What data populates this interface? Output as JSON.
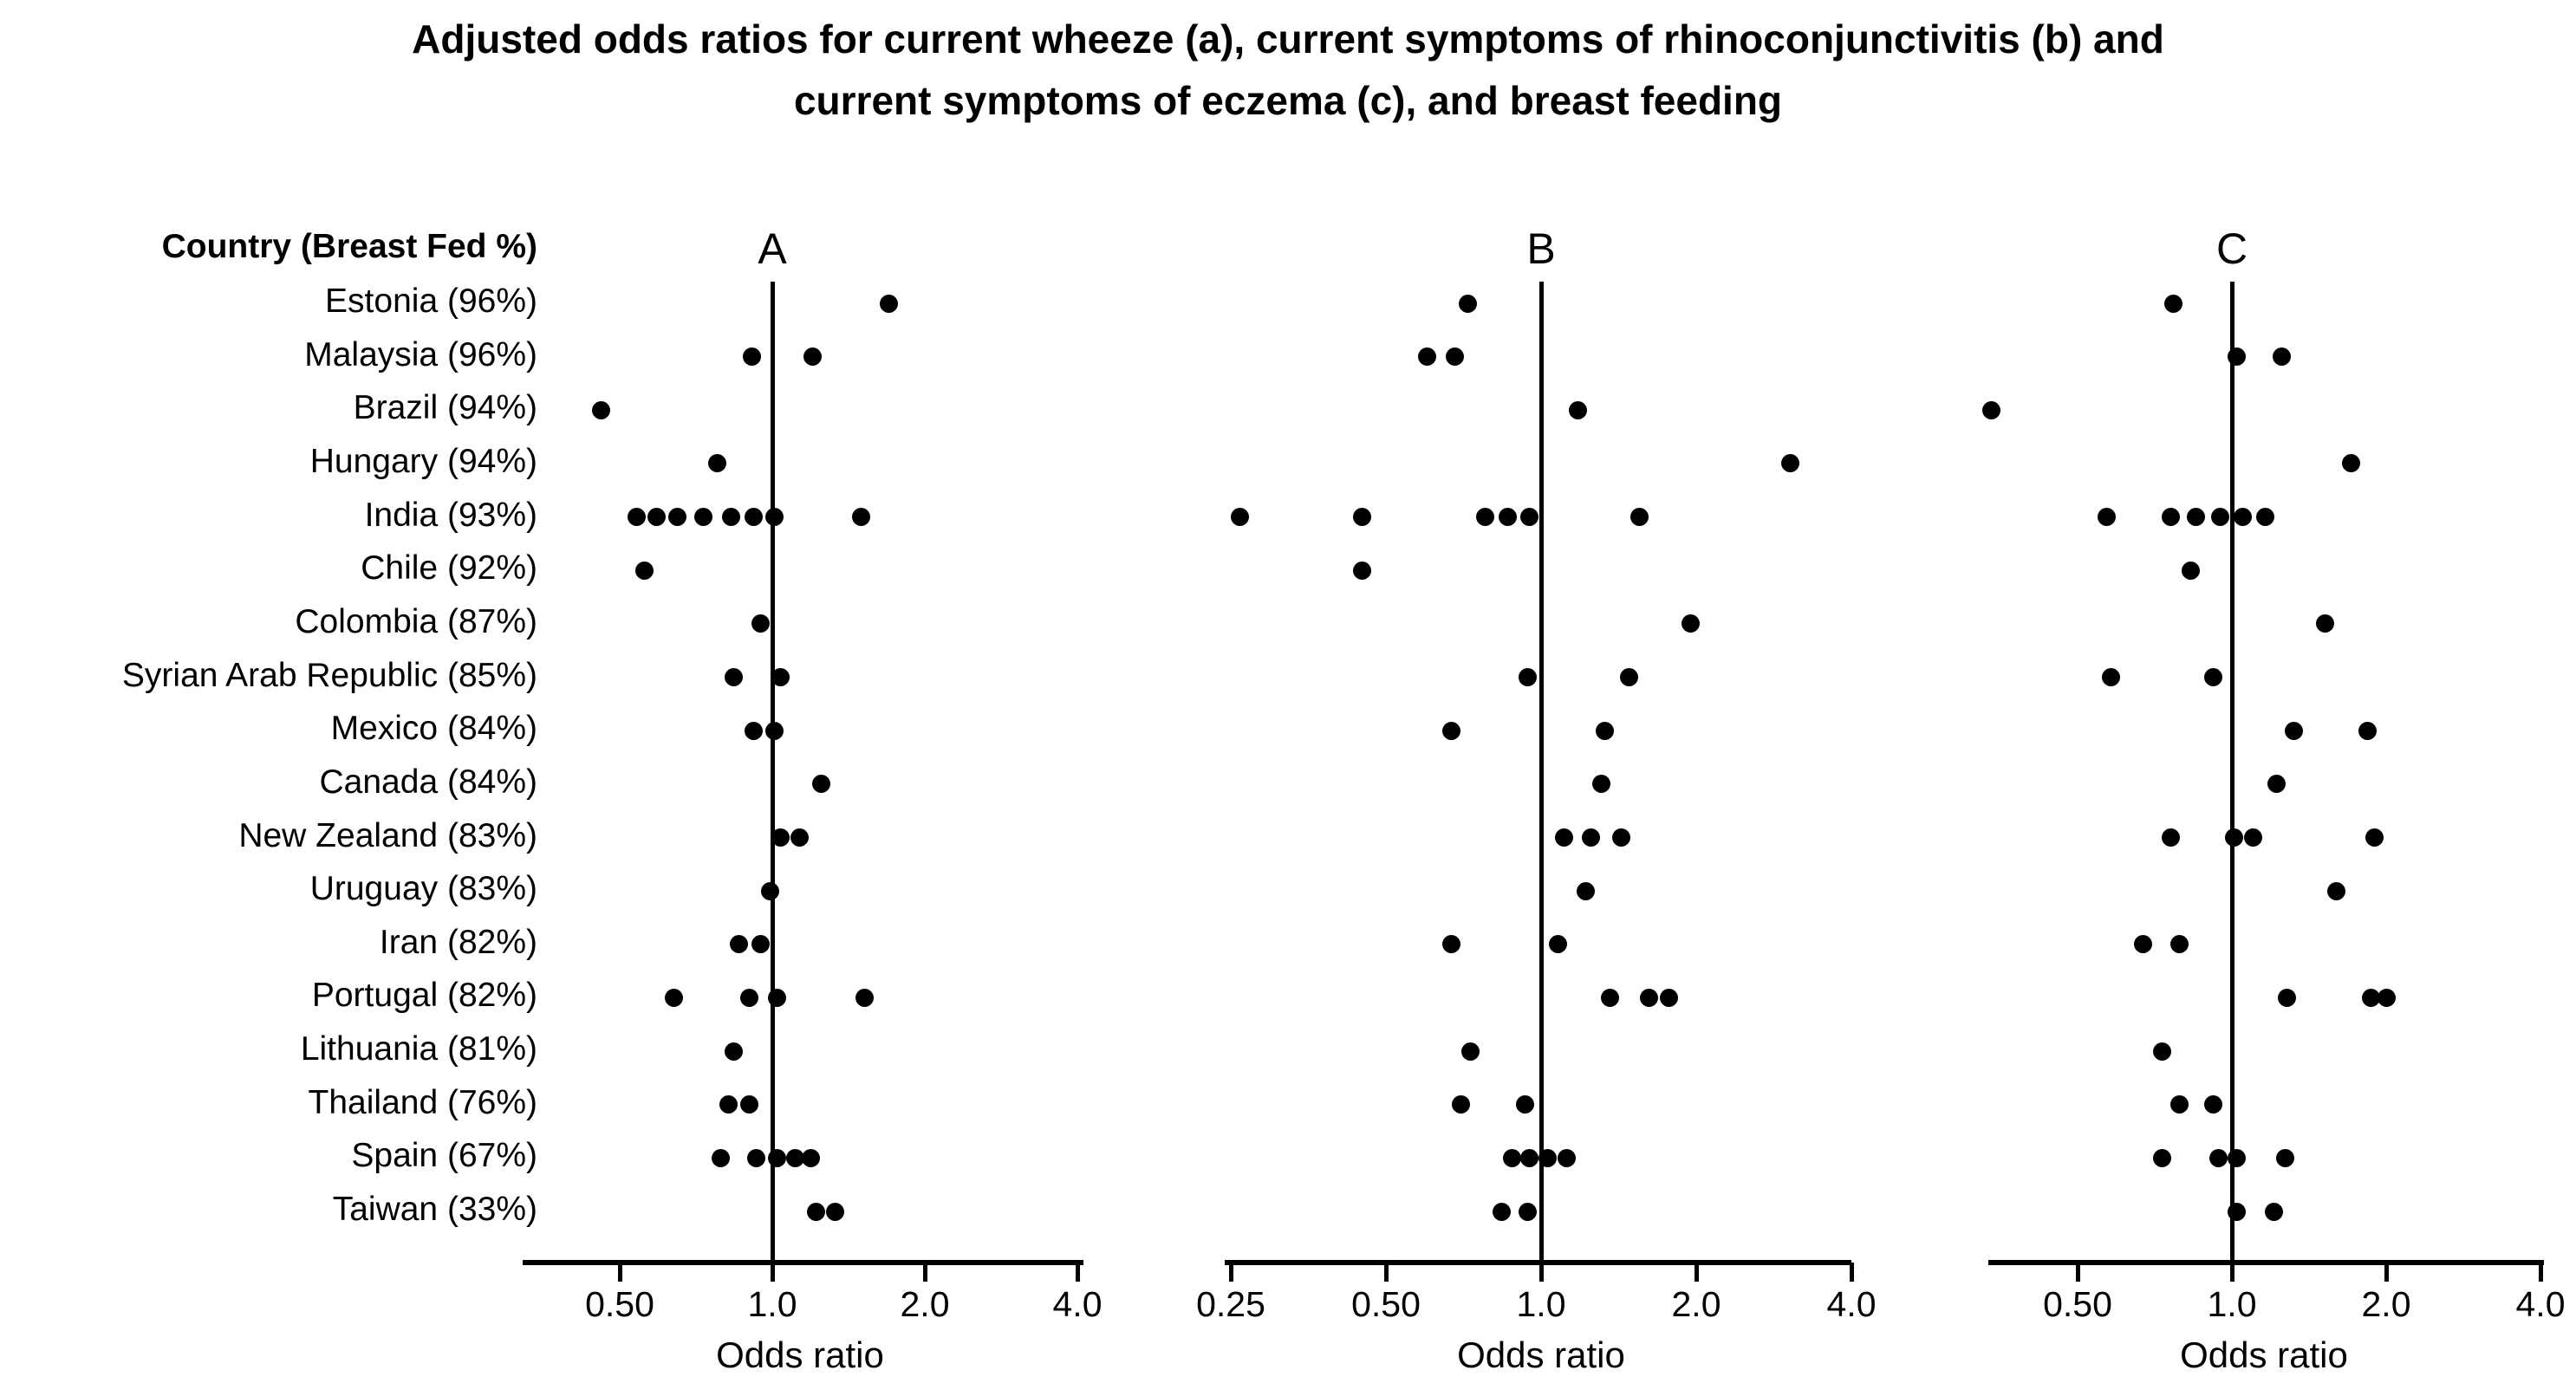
{
  "title": {
    "line1": "Adjusted odds ratios for current wheeze (a), current symptoms of rhinoconjunctivitis (b) and",
    "line2": "current symptoms of eczema (c), and breast feeding"
  },
  "row_header": "Country (Breast Fed %)",
  "colors": {
    "dot": "#000000",
    "line": "#000000",
    "background": "#ffffff"
  },
  "chart_data": {
    "type": "scatter",
    "subtype": "forest-dot-plot",
    "xlabel": "Odds ratio",
    "x_scale": "log2",
    "grid": false,
    "legend": false,
    "panels": [
      {
        "id": "A",
        "label": "A",
        "tick_values": [
          0.5,
          1.0,
          2.0,
          4.0
        ],
        "tick_labels": [
          "0.50",
          "1.0",
          "2.0",
          "4.0"
        ],
        "xlim": [
          0.32,
          4.1
        ],
        "reference_line": 1.0
      },
      {
        "id": "B",
        "label": "B",
        "tick_values": [
          0.25,
          0.5,
          1.0,
          2.0,
          4.0
        ],
        "tick_labels": [
          "0.25",
          "0.50",
          "1.0",
          "2.0",
          "4.0"
        ],
        "xlim": [
          0.25,
          4.0
        ],
        "reference_line": 1.0
      },
      {
        "id": "C",
        "label": "C",
        "tick_values": [
          0.5,
          1.0,
          2.0,
          4.0
        ],
        "tick_labels": [
          "0.50",
          "1.0",
          "2.0",
          "4.0"
        ],
        "xlim": [
          0.33,
          4.0
        ],
        "reference_line": 1.0
      }
    ],
    "rows": [
      {
        "country": "Estonia (96%)",
        "A": [
          1.7
        ],
        "B": [
          0.72
        ],
        "C": [
          0.77
        ]
      },
      {
        "country": "Malaysia (96%)",
        "A": [
          0.91,
          1.2
        ],
        "B": [
          0.6,
          0.68
        ],
        "C": [
          1.02,
          1.25
        ]
      },
      {
        "country": "Brazil (94%)",
        "A": [
          0.46
        ],
        "B": [
          1.18
        ],
        "C": [
          0.34
        ]
      },
      {
        "country": "Hungary (94%)",
        "A": [
          0.78
        ],
        "B": [
          3.05
        ],
        "C": [
          1.71
        ]
      },
      {
        "country": "India (93%)",
        "A": [
          0.54,
          0.59,
          0.65,
          0.73,
          0.83,
          0.92,
          1.01,
          1.5
        ],
        "B": [
          0.26,
          0.45,
          0.78,
          0.86,
          0.95,
          1.55
        ],
        "C": [
          0.57,
          0.76,
          0.85,
          0.95,
          1.05,
          1.16
        ]
      },
      {
        "country": "Chile (92%)",
        "A": [
          0.56
        ],
        "B": [
          0.45
        ],
        "C": [
          0.83
        ]
      },
      {
        "country": "Colombia (87%)",
        "A": [
          0.95
        ],
        "B": [
          1.95
        ],
        "C": [
          1.52
        ]
      },
      {
        "country": "Syrian Arab Republic (85%)",
        "A": [
          0.84,
          1.04
        ],
        "B": [
          0.94,
          1.48
        ],
        "C": [
          0.58,
          0.92
        ]
      },
      {
        "country": "Mexico (84%)",
        "A": [
          0.92,
          1.01
        ],
        "B": [
          0.67,
          1.33
        ],
        "C": [
          1.32,
          1.84
        ]
      },
      {
        "country": "Canada (84%)",
        "A": [
          1.25
        ],
        "B": [
          1.31
        ],
        "C": [
          1.22
        ]
      },
      {
        "country": "New Zealand (83%)",
        "A": [
          1.04,
          1.13
        ],
        "B": [
          1.11,
          1.25,
          1.43
        ],
        "C": [
          0.76,
          1.01,
          1.1,
          1.9
        ]
      },
      {
        "country": "Uruguay (83%)",
        "A": [
          0.99
        ],
        "B": [
          1.22
        ],
        "C": [
          1.6
        ]
      },
      {
        "country": "Iran (82%)",
        "A": [
          0.86,
          0.95
        ],
        "B": [
          0.67,
          1.08
        ],
        "C": [
          0.67,
          0.79
        ]
      },
      {
        "country": "Portugal (82%)",
        "A": [
          0.64,
          0.9,
          1.02,
          1.52
        ],
        "B": [
          1.36,
          1.62,
          1.77
        ],
        "C": [
          1.28,
          1.87,
          2.0
        ]
      },
      {
        "country": "Lithuania (81%)",
        "A": [
          0.84
        ],
        "B": [
          0.73
        ],
        "C": [
          0.73
        ]
      },
      {
        "country": "Thailand (76%)",
        "A": [
          0.82,
          0.9
        ],
        "B": [
          0.7,
          0.93
        ],
        "C": [
          0.79,
          0.92
        ]
      },
      {
        "country": "Spain (67%)",
        "A": [
          0.79,
          0.93,
          1.02,
          1.11,
          1.19
        ],
        "B": [
          0.88,
          0.95,
          1.03,
          1.12
        ],
        "C": [
          0.73,
          0.94,
          1.02,
          1.27
        ]
      },
      {
        "country": "Taiwan (33%)",
        "A": [
          1.22,
          1.33
        ],
        "B": [
          0.84,
          0.94
        ],
        "C": [
          1.02,
          1.21
        ]
      }
    ]
  }
}
